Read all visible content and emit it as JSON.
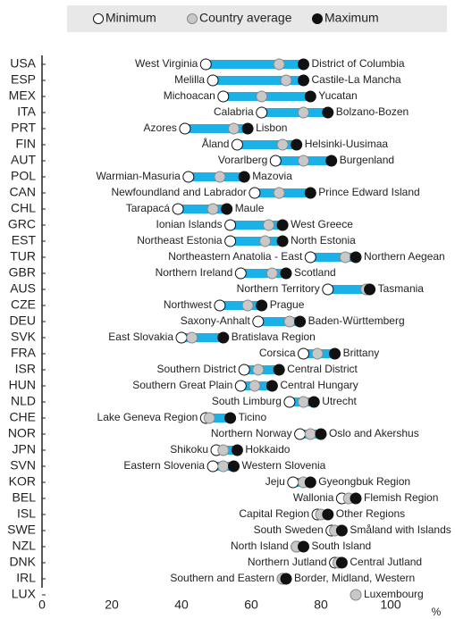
{
  "chart_data": {
    "type": "range_dot",
    "categories": [
      "USA",
      "ESP",
      "MEX",
      "ITA",
      "PRT",
      "FIN",
      "AUT",
      "POL",
      "CAN",
      "CHL",
      "GRC",
      "EST",
      "TUR",
      "GBR",
      "AUS",
      "CZE",
      "DEU",
      "SVK",
      "FRA",
      "ISR",
      "HUN",
      "NLD",
      "CHE",
      "NOR",
      "JPN",
      "SVN",
      "KOR",
      "BEL",
      "ISL",
      "SWE",
      "NZL",
      "DNK",
      "IRL",
      "LUX"
    ],
    "series": [
      {
        "name": "Minimum",
        "color": "#ffffff",
        "values": [
          47,
          49,
          52,
          63,
          41,
          56,
          67,
          42,
          61,
          39,
          54,
          54,
          77,
          57,
          82,
          51,
          62,
          40,
          75,
          58,
          57,
          71,
          47,
          74,
          50,
          49,
          72,
          86,
          79,
          83,
          73,
          84,
          69,
          null
        ]
      },
      {
        "name": "Country average",
        "color": "#c8c8c8",
        "values": [
          68,
          70,
          63,
          75,
          55,
          69,
          75,
          51,
          68,
          49,
          65,
          64,
          87,
          66,
          93,
          59,
          71,
          43,
          79,
          62,
          61,
          75,
          48,
          77,
          52,
          52,
          75,
          88,
          80,
          84,
          73,
          85,
          69,
          90
        ]
      },
      {
        "name": "Maximum",
        "color": "#111111",
        "values": [
          75,
          75,
          77,
          82,
          59,
          73,
          83,
          58,
          77,
          53,
          69,
          69,
          90,
          70,
          94,
          63,
          74,
          52,
          84,
          68,
          66,
          78,
          54,
          80,
          56,
          55,
          77,
          90,
          82,
          86,
          75,
          86,
          70,
          null
        ]
      }
    ],
    "min_labels": [
      "West Virginia",
      "Melilla",
      "Michoacan",
      "Calabria",
      "Azores",
      "Åland",
      "Vorarlberg",
      "Warmian-Masuria",
      "Newfoundland and Labrador",
      "Tarapacá",
      "Ionian Islands",
      "Northeast Estonia",
      "Northeastern Anatolia - East",
      "Northern Ireland",
      "Northern Territory",
      "Northwest",
      "Saxony-Anhalt",
      "East Slovakia",
      "Corsica",
      "Southern District",
      "Southern Great Plain",
      "South Limburg",
      "Lake Geneva Region",
      "Northern Norway",
      "Shikoku",
      "Eastern Slovenia",
      "Jeju",
      "Wallonia",
      "Capital Region",
      "South Sweden",
      "North Island",
      "Northern Jutland",
      "Southern and Eastern",
      null
    ],
    "max_labels": [
      "District of Columbia",
      "Castile-La Mancha",
      "Yucatan",
      "Bolzano-Bozen",
      "Lisbon",
      "Helsinki-Uusimaa",
      "Burgenland",
      "Mazovia",
      "Prince Edward Island",
      "Maule",
      "West Greece",
      "North Estonia",
      "Northern Aegean",
      "Scotland",
      "Tasmania",
      "Prague",
      "Baden-Württemberg",
      "Bratislava Region",
      "Brittany",
      "Central District",
      "Central Hungary",
      "Utrecht",
      "Ticino",
      "Oslo and Akershus",
      "Hokkaido",
      "Western Slovenia",
      "Gyeongbuk Region",
      "Flemish Region",
      "Other Regions",
      "Småland with Islands",
      "South Island",
      "Central Jutland",
      "Border, Midland, Western",
      "Luxembourg"
    ],
    "bar_color": "#1ab0e8",
    "xlim": [
      0,
      110
    ],
    "xticks": [
      0,
      20,
      40,
      60,
      80,
      100
    ],
    "x_label": "%"
  }
}
